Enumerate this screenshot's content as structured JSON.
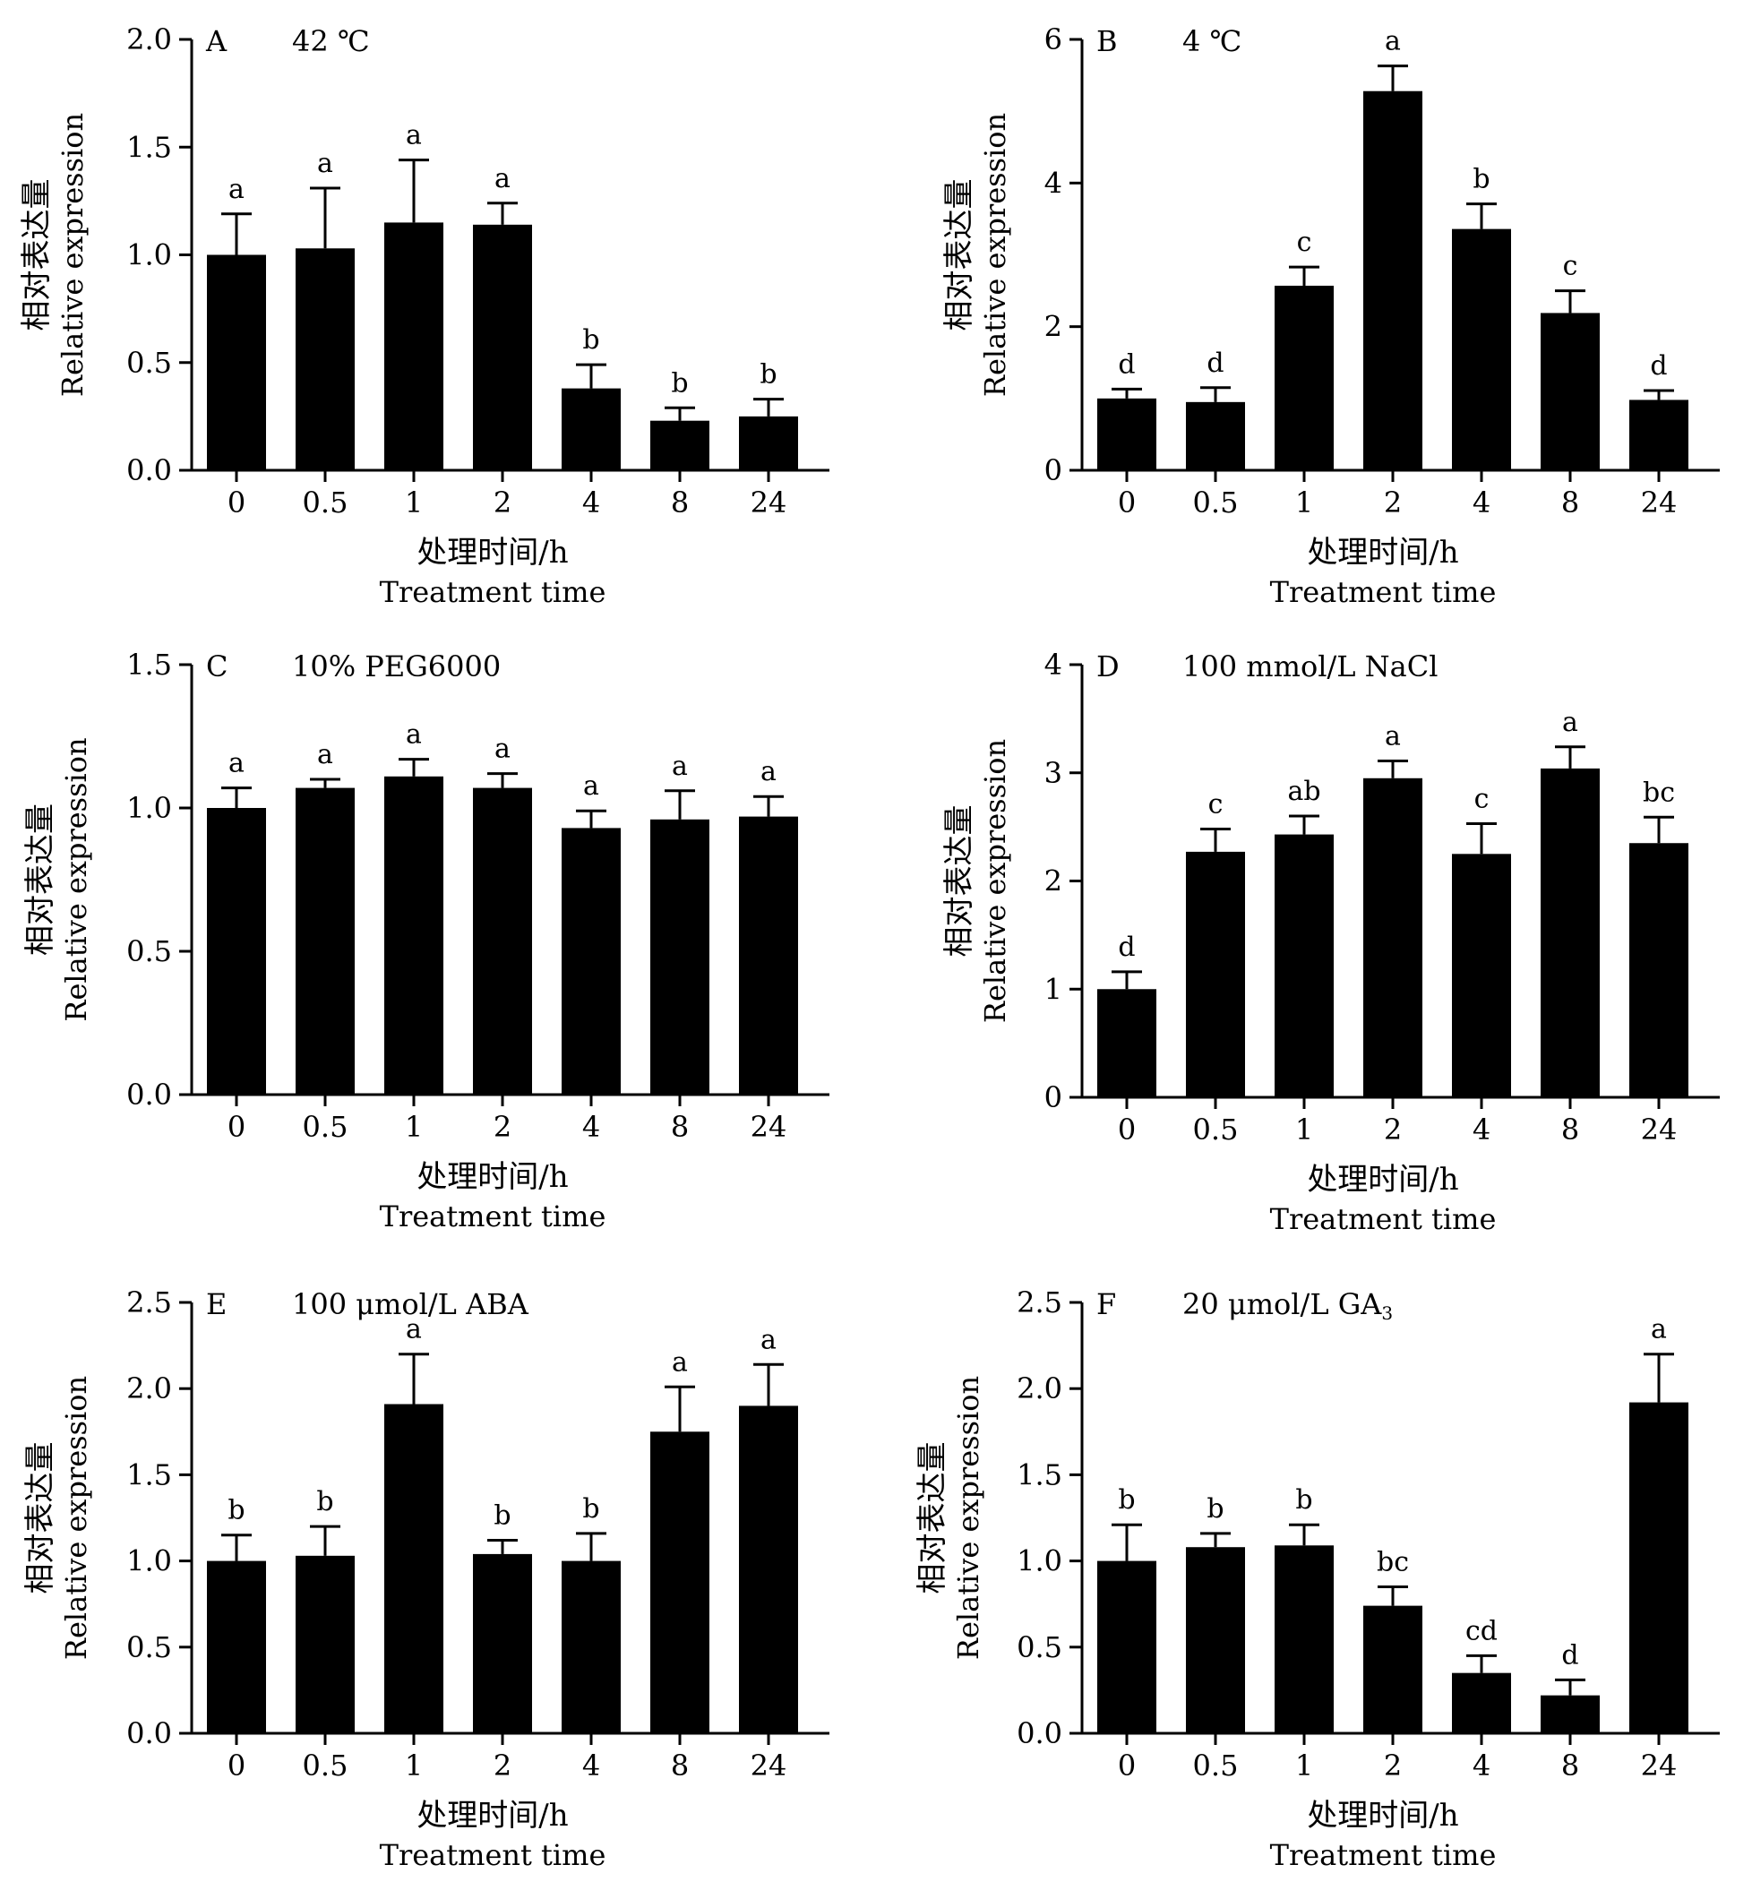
{
  "figure": {
    "y_label_cn": "相对表达量",
    "y_label_en": "Relative expression",
    "x_label_cn": "处理时间/h",
    "x_label_en": "Treatment time"
  },
  "chart_data": [
    {
      "type": "bar",
      "panel": "A",
      "title": "42 ℃",
      "categories": [
        "0",
        "0.5",
        "1",
        "2",
        "4",
        "8",
        "24"
      ],
      "values": [
        1.0,
        1.03,
        1.15,
        1.14,
        0.38,
        0.23,
        0.25
      ],
      "errors": [
        0.19,
        0.28,
        0.29,
        0.1,
        0.11,
        0.06,
        0.08
      ],
      "letters": [
        "a",
        "a",
        "a",
        "a",
        "b",
        "b",
        "b"
      ],
      "ylim": [
        0,
        2.0
      ],
      "yticks": [
        0,
        0.5,
        1.0,
        1.5,
        2.0
      ],
      "ytick_labels": [
        "0.0",
        "0.5",
        "1.0",
        "1.5",
        "2.0"
      ],
      "ylabel": "相对表达量 Relative expression",
      "xlabel": "处理时间/h Treatment time"
    },
    {
      "type": "bar",
      "panel": "B",
      "title": "4 ℃",
      "categories": [
        "0",
        "0.5",
        "1",
        "2",
        "4",
        "8",
        "24"
      ],
      "values": [
        1.0,
        0.95,
        2.57,
        5.28,
        3.36,
        2.19,
        0.98
      ],
      "errors": [
        0.13,
        0.2,
        0.26,
        0.35,
        0.35,
        0.31,
        0.13
      ],
      "letters": [
        "d",
        "d",
        "c",
        "a",
        "b",
        "c",
        "d"
      ],
      "ylim": [
        0,
        6
      ],
      "yticks": [
        0,
        2,
        4,
        6
      ],
      "ytick_labels": [
        "0",
        "2",
        "4",
        "6"
      ],
      "ylabel": "相对表达量 Relative expression",
      "xlabel": "处理时间/h Treatment time"
    },
    {
      "type": "bar",
      "panel": "C",
      "title": "10% PEG6000",
      "categories": [
        "0",
        "0.5",
        "1",
        "2",
        "4",
        "8",
        "24"
      ],
      "values": [
        1.0,
        1.07,
        1.11,
        1.07,
        0.93,
        0.96,
        0.97
      ],
      "errors": [
        0.07,
        0.03,
        0.06,
        0.05,
        0.06,
        0.1,
        0.07
      ],
      "letters": [
        "a",
        "a",
        "a",
        "a",
        "a",
        "a",
        "a"
      ],
      "ylim": [
        0,
        1.5
      ],
      "yticks": [
        0,
        0.5,
        1.0,
        1.5
      ],
      "ytick_labels": [
        "0.0",
        "0.5",
        "1.0",
        "1.5"
      ],
      "ylabel": "相对表达量 Relative expression",
      "xlabel": "处理时间/h Treatment time"
    },
    {
      "type": "bar",
      "panel": "D",
      "title": "100 mmol/L NaCl",
      "categories": [
        "0",
        "0.5",
        "1",
        "2",
        "4",
        "8",
        "24"
      ],
      "values": [
        1.0,
        2.27,
        2.43,
        2.95,
        2.25,
        3.04,
        2.35
      ],
      "errors": [
        0.16,
        0.21,
        0.17,
        0.16,
        0.28,
        0.2,
        0.24
      ],
      "letters": [
        "d",
        "c",
        "ab",
        "a",
        "c",
        "a",
        "bc"
      ],
      "ylim": [
        0,
        4
      ],
      "yticks": [
        0,
        1,
        2,
        3,
        4
      ],
      "ytick_labels": [
        "0",
        "1",
        "2",
        "3",
        "4"
      ],
      "ylabel": "相对表达量 Relative expression",
      "xlabel": "处理时间/h Treatment time"
    },
    {
      "type": "bar",
      "panel": "E",
      "title": "100 μmol/L ABA",
      "categories": [
        "0",
        "0.5",
        "1",
        "2",
        "4",
        "8",
        "24"
      ],
      "values": [
        1.0,
        1.03,
        1.91,
        1.04,
        1.0,
        1.75,
        1.9
      ],
      "errors": [
        0.15,
        0.17,
        0.29,
        0.08,
        0.16,
        0.26,
        0.24
      ],
      "letters": [
        "b",
        "b",
        "a",
        "b",
        "b",
        "a",
        "a"
      ],
      "ylim": [
        0,
        2.5
      ],
      "yticks": [
        0,
        0.5,
        1.0,
        1.5,
        2.0,
        2.5
      ],
      "ytick_labels": [
        "0.0",
        "0.5",
        "1.0",
        "1.5",
        "2.0",
        "2.5"
      ],
      "ylabel": "相对表达量 Relative expression",
      "xlabel": "处理时间/h Treatment time"
    },
    {
      "type": "bar",
      "panel": "F",
      "title": "20 μmol/L GA",
      "title_subscript": "3",
      "categories": [
        "0",
        "0.5",
        "1",
        "2",
        "4",
        "8",
        "24"
      ],
      "values": [
        1.0,
        1.08,
        1.09,
        0.74,
        0.35,
        0.22,
        1.92
      ],
      "errors": [
        0.21,
        0.08,
        0.12,
        0.11,
        0.1,
        0.09,
        0.28
      ],
      "letters": [
        "b",
        "b",
        "b",
        "bc",
        "cd",
        "d",
        "a"
      ],
      "ylim": [
        0,
        2.5
      ],
      "yticks": [
        0,
        0.5,
        1.0,
        1.5,
        2.0,
        2.5
      ],
      "ytick_labels": [
        "0.0",
        "0.5",
        "1.0",
        "1.5",
        "2.0",
        "2.5"
      ],
      "ylabel": "相对表达量 Relative expression",
      "xlabel": "处理时间/h Treatment time"
    }
  ]
}
